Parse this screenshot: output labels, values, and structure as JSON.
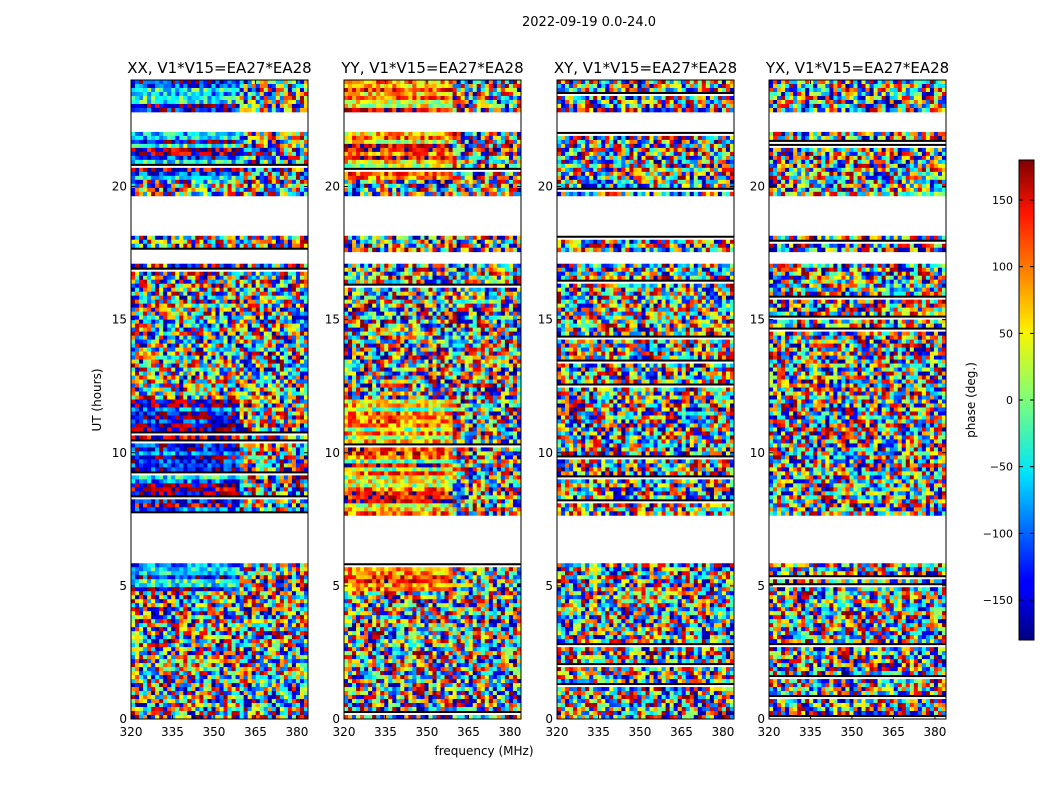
{
  "figure": {
    "suptitle": "2022-09-19 0.0-24.0",
    "xlabel": "frequency (MHz)",
    "ylabel": "UT (hours)"
  },
  "chart_data": {
    "type": "heatmap",
    "panels": [
      {
        "title": "XX, V1*V15=EA27*EA28",
        "pol": "XX"
      },
      {
        "title": "YY, V1*V15=EA27*EA28",
        "pol": "YY"
      },
      {
        "title": "XY, V1*V15=EA27*EA28",
        "pol": "XY"
      },
      {
        "title": "YX, V1*V15=EA27*EA28",
        "pol": "YX"
      }
    ],
    "x_ticks": [
      320,
      335,
      350,
      365,
      380
    ],
    "xlim": [
      320,
      384
    ],
    "y_ticks": [
      0,
      5,
      10,
      15,
      20
    ],
    "ylim": [
      0,
      24
    ],
    "colorbar": {
      "label": "phase (deg.)",
      "ticks": [
        150,
        100,
        50,
        0,
        -50,
        -100,
        -150
      ],
      "tick_labels": [
        "150",
        "100",
        "50",
        "0",
        "−50",
        "−100",
        "−150"
      ],
      "range": [
        -180,
        180
      ],
      "colormap": "jet"
    },
    "data_gaps_ut": [
      [
        5.85,
        7.6
      ],
      [
        17.05,
        17.6
      ],
      [
        18.2,
        19.7
      ],
      [
        22.05,
        22.8
      ]
    ],
    "grid": false
  }
}
